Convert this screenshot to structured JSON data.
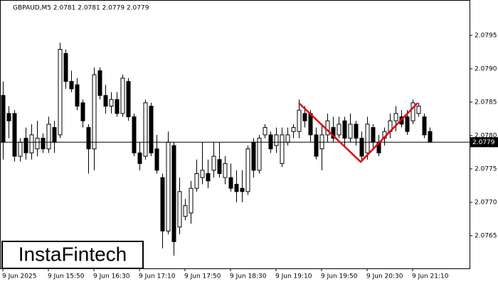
{
  "chart_data": {
    "type": "candlestick",
    "title": "GBPAUD,M5  2.0781 2.0781 2.0779 2.0779",
    "logo": "InstaFintech",
    "categories": [
      "9 Jun 2025",
      null,
      null,
      null,
      null,
      null,
      null,
      null,
      "9 Jun 15:50",
      null,
      null,
      null,
      null,
      null,
      null,
      null,
      "9 Jun 16:30",
      null,
      null,
      null,
      null,
      null,
      null,
      null,
      "9 Jun 17:10",
      null,
      null,
      null,
      null,
      null,
      null,
      null,
      "9 Jun 17:50",
      null,
      null,
      null,
      null,
      null,
      null,
      null,
      "9 Jun 18:30",
      null,
      null,
      null,
      null,
      null,
      null,
      null,
      "9 Jun 19:10",
      null,
      null,
      null,
      null,
      null,
      null,
      null,
      "9 Jun 19:50",
      null,
      null,
      null,
      null,
      null,
      null,
      null,
      "9 Jun 20:30",
      null,
      null,
      null,
      null,
      null,
      null,
      null,
      "9 Jun 21:10",
      null,
      null,
      null
    ],
    "open": [
      2.0786,
      2.07833,
      2.07833,
      2.07769,
      2.07796,
      2.07774,
      2.0778,
      2.07796,
      2.0778,
      2.07812,
      2.07801,
      2.07923,
      2.07881,
      2.07876,
      2.07849,
      2.07812,
      2.0778,
      2.07897,
      2.0786,
      2.07844,
      2.07854,
      2.07833,
      2.07881,
      2.07828,
      2.07774,
      2.07769,
      2.07844,
      2.0778,
      2.07737,
      2.07657,
      2.07785,
      2.07663,
      2.07679,
      2.07684,
      2.07721,
      2.07737,
      2.07743,
      2.07748,
      2.07764,
      2.07737,
      2.07737,
      2.07727,
      2.07721,
      2.07716,
      2.0779,
      2.07748,
      2.07801,
      2.07801,
      2.07785,
      2.07758,
      2.0779,
      2.07806,
      2.07806,
      2.07833,
      2.07833,
      2.07801,
      2.0778,
      2.07801,
      2.07812,
      2.07801,
      2.07822,
      2.07796,
      2.07817,
      2.07796,
      2.07774,
      2.07812,
      2.0779,
      2.07796,
      2.07806,
      2.07822,
      2.07828,
      2.07828,
      2.07822,
      2.07833,
      2.07828,
      2.07806
    ],
    "high": [
      2.07881,
      2.07844,
      2.07838,
      2.07796,
      2.07812,
      2.07817,
      2.07822,
      2.07803,
      2.07828,
      2.07822,
      2.07939,
      2.07929,
      2.07897,
      2.07886,
      2.07854,
      2.07817,
      2.07902,
      2.07902,
      2.07876,
      2.07865,
      2.07865,
      2.07891,
      2.07886,
      2.07833,
      2.0779,
      2.07854,
      2.07849,
      2.07801,
      2.07743,
      2.07806,
      2.0779,
      2.07737,
      2.07705,
      2.07732,
      2.07764,
      2.0779,
      2.07764,
      2.0779,
      2.0779,
      2.07769,
      2.07758,
      2.07748,
      2.07748,
      2.07785,
      2.07796,
      2.07801,
      2.07817,
      2.07806,
      2.07812,
      2.07812,
      2.07812,
      2.07817,
      2.07854,
      2.07844,
      2.07838,
      2.07812,
      2.07817,
      2.07833,
      2.07828,
      2.07828,
      2.07828,
      2.07833,
      2.07822,
      2.07806,
      2.07828,
      2.07817,
      2.07801,
      2.07812,
      2.07833,
      2.07844,
      2.07838,
      2.07838,
      2.07854,
      2.07849,
      2.07833,
      2.07812
    ],
    "low": [
      2.07764,
      2.07796,
      2.07761,
      2.07761,
      2.07764,
      2.07764,
      2.07769,
      2.07774,
      2.07774,
      2.07774,
      2.07796,
      2.0787,
      2.07865,
      2.07838,
      2.07812,
      2.07743,
      2.07748,
      2.07854,
      2.07833,
      2.07833,
      2.07828,
      2.07828,
      2.07822,
      2.07769,
      2.07748,
      2.07764,
      2.07769,
      2.07743,
      2.07631,
      2.07652,
      2.0762,
      2.07652,
      2.07673,
      2.07668,
      2.07716,
      2.07727,
      2.07721,
      2.07737,
      2.07737,
      2.07727,
      2.07716,
      2.077,
      2.077,
      2.07711,
      2.07737,
      2.07743,
      2.07796,
      2.07774,
      2.07774,
      2.07753,
      2.07785,
      2.07796,
      2.07796,
      2.07812,
      2.0779,
      2.07764,
      2.07748,
      2.0779,
      2.0779,
      2.07796,
      2.07785,
      2.0779,
      2.07785,
      2.07764,
      2.07764,
      2.0778,
      2.07769,
      2.07785,
      2.07796,
      2.07806,
      2.07812,
      2.07801,
      2.07817,
      2.07828,
      2.07796,
      2.0779
    ],
    "close": [
      2.0779,
      2.07822,
      2.07769,
      2.0779,
      2.07774,
      2.07801,
      2.07796,
      2.0778,
      2.07817,
      2.0779,
      2.07929,
      2.07881,
      2.0787,
      2.07844,
      2.07822,
      2.0778,
      2.07891,
      2.0786,
      2.07844,
      2.07854,
      2.07833,
      2.07886,
      2.07828,
      2.07774,
      2.07758,
      2.07849,
      2.07774,
      2.07748,
      2.07657,
      2.0779,
      2.07641,
      2.07716,
      2.07695,
      2.07721,
      2.07743,
      2.07748,
      2.07732,
      2.07769,
      2.07743,
      2.07758,
      2.07721,
      2.07716,
      2.07716,
      2.0778,
      2.07748,
      2.07796,
      2.07812,
      2.0778,
      2.07801,
      2.07801,
      2.07801,
      2.07812,
      2.07838,
      2.07822,
      2.07801,
      2.07769,
      2.07801,
      2.07822,
      2.07796,
      2.07817,
      2.07796,
      2.07817,
      2.07796,
      2.07769,
      2.07817,
      2.0779,
      2.07774,
      2.07806,
      2.07822,
      2.07833,
      2.07817,
      2.07806,
      2.07849,
      2.07844,
      2.07801,
      2.0779
    ],
    "up_color": "#ffffff",
    "down_color": "#000000",
    "last_price": 2.0779,
    "ylim": [
      2.07601,
      2.08003
    ],
    "yticks": [
      2.0765,
      {
        "value": 2.077,
        "label": "2.0770"
      },
      2.0775,
      {
        "value": 2.078,
        "label": "2.0780"
      },
      2.0785,
      {
        "value": 2.079,
        "label": "2.0790"
      },
      2.0795
    ]
  }
}
